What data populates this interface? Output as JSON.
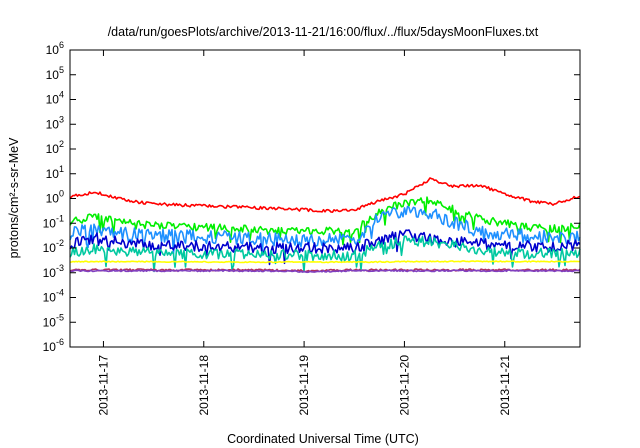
{
  "chart_data": {
    "type": "line",
    "title": "/data/run/goesPlots/archive/2013-11-21/16:00/flux/../flux/5daysMoonFluxes.txt",
    "xlabel": "Coordinated Universal Time (UTC)",
    "ylabel": "protons/cm²-s-sr-MeV",
    "yscale": "log",
    "ylim": [
      1e-06,
      1000000.0
    ],
    "xlim": [
      "2013-11-16T16:00",
      "2013-11-21T18:00"
    ],
    "y_ticks": [
      {
        "value": 1e-06,
        "base": "10",
        "exp": "-6"
      },
      {
        "value": 1e-05,
        "base": "10",
        "exp": "-5"
      },
      {
        "value": 0.0001,
        "base": "10",
        "exp": "-4"
      },
      {
        "value": 0.001,
        "base": "10",
        "exp": "-3"
      },
      {
        "value": 0.01,
        "base": "10",
        "exp": "-2"
      },
      {
        "value": 0.1,
        "base": "10",
        "exp": "-1"
      },
      {
        "value": 1.0,
        "base": "10",
        "exp": "0"
      },
      {
        "value": 10.0,
        "base": "10",
        "exp": "1"
      },
      {
        "value": 100.0,
        "base": "10",
        "exp": "2"
      },
      {
        "value": 1000.0,
        "base": "10",
        "exp": "3"
      },
      {
        "value": 10000.0,
        "base": "10",
        "exp": "4"
      },
      {
        "value": 100000.0,
        "base": "10",
        "exp": "5"
      },
      {
        "value": 1000000.0,
        "base": "10",
        "exp": "6"
      }
    ],
    "x_ticks": [
      "2013-11-17",
      "2013-11-18",
      "2013-11-19",
      "2013-11-20",
      "2013-11-21"
    ],
    "grid": false,
    "legend": "none",
    "series": [
      {
        "color": "#ff0000",
        "times": [
          "2013-11-16T16:00",
          "2013-11-16T22:00",
          "2013-11-17T06:00",
          "2013-11-17T12:00",
          "2013-11-18T00:00",
          "2013-11-18T08:00",
          "2013-11-18T16:00",
          "2013-11-19T00:00",
          "2013-11-19T08:00",
          "2013-11-19T12:00",
          "2013-11-19T18:00",
          "2013-11-20T00:00",
          "2013-11-20T06:00",
          "2013-11-20T12:00",
          "2013-11-20T18:00",
          "2013-11-21T00:00",
          "2013-11-21T06:00",
          "2013-11-21T12:00",
          "2013-11-21T18:00"
        ],
        "values": [
          1.2,
          1.8,
          0.8,
          0.6,
          0.5,
          0.45,
          0.4,
          0.35,
          0.3,
          0.35,
          0.8,
          1.5,
          6.0,
          3.0,
          3.5,
          1.5,
          0.8,
          0.6,
          1.3
        ]
      },
      {
        "color": "#00ee00",
        "times": [
          "2013-11-16T16:00",
          "2013-11-16T22:00",
          "2013-11-17T06:00",
          "2013-11-17T12:00",
          "2013-11-18T00:00",
          "2013-11-18T08:00",
          "2013-11-18T16:00",
          "2013-11-19T00:00",
          "2013-11-19T08:00",
          "2013-11-19T12:00",
          "2013-11-19T18:00",
          "2013-11-20T00:00",
          "2013-11-20T06:00",
          "2013-11-20T12:00",
          "2013-11-20T18:00",
          "2013-11-21T00:00",
          "2013-11-21T06:00",
          "2013-11-21T12:00",
          "2013-11-21T18:00"
        ],
        "values": [
          0.12,
          0.18,
          0.1,
          0.08,
          0.07,
          0.06,
          0.05,
          0.05,
          0.05,
          0.05,
          0.3,
          0.7,
          0.8,
          0.35,
          0.15,
          0.1,
          0.07,
          0.06,
          0.08
        ]
      },
      {
        "color": "#1e90ff",
        "times": [
          "2013-11-16T16:00",
          "2013-11-16T22:00",
          "2013-11-17T06:00",
          "2013-11-17T12:00",
          "2013-11-18T00:00",
          "2013-11-18T08:00",
          "2013-11-18T16:00",
          "2013-11-19T00:00",
          "2013-11-19T08:00",
          "2013-11-19T12:00",
          "2013-11-19T18:00",
          "2013-11-20T00:00",
          "2013-11-20T06:00",
          "2013-11-20T12:00",
          "2013-11-20T18:00",
          "2013-11-21T00:00",
          "2013-11-21T06:00",
          "2013-11-21T12:00",
          "2013-11-21T18:00"
        ],
        "values": [
          0.04,
          0.06,
          0.035,
          0.03,
          0.028,
          0.025,
          0.022,
          0.02,
          0.02,
          0.02,
          0.2,
          0.3,
          0.25,
          0.1,
          0.05,
          0.035,
          0.03,
          0.025,
          0.03
        ]
      },
      {
        "color": "#0000cd",
        "times": [
          "2013-11-16T16:00",
          "2013-11-16T22:00",
          "2013-11-17T06:00",
          "2013-11-17T12:00",
          "2013-11-18T00:00",
          "2013-11-18T08:00",
          "2013-11-18T16:00",
          "2013-11-19T00:00",
          "2013-11-19T08:00",
          "2013-11-19T12:00",
          "2013-11-19T18:00",
          "2013-11-20T00:00",
          "2013-11-20T06:00",
          "2013-11-20T12:00",
          "2013-11-20T18:00",
          "2013-11-21T00:00",
          "2013-11-21T06:00",
          "2013-11-21T12:00",
          "2013-11-21T18:00"
        ],
        "values": [
          0.015,
          0.025,
          0.015,
          0.012,
          0.012,
          0.011,
          0.01,
          0.01,
          0.01,
          0.01,
          0.02,
          0.035,
          0.025,
          0.018,
          0.015,
          0.012,
          0.012,
          0.011,
          0.014
        ]
      },
      {
        "color": "#00c8a0",
        "times": [
          "2013-11-16T16:00",
          "2013-11-16T22:00",
          "2013-11-17T06:00",
          "2013-11-17T12:00",
          "2013-11-18T00:00",
          "2013-11-18T08:00",
          "2013-11-18T16:00",
          "2013-11-19T00:00",
          "2013-11-19T08:00",
          "2013-11-19T12:00",
          "2013-11-19T18:00",
          "2013-11-20T00:00",
          "2013-11-20T06:00",
          "2013-11-20T12:00",
          "2013-11-20T18:00",
          "2013-11-21T00:00",
          "2013-11-21T06:00",
          "2013-11-21T12:00",
          "2013-11-21T18:00"
        ],
        "values": [
          0.007,
          0.009,
          0.007,
          0.006,
          0.006,
          0.006,
          0.0055,
          0.005,
          0.005,
          0.005,
          0.012,
          0.02,
          0.018,
          0.012,
          0.009,
          0.007,
          0.006,
          0.006,
          0.007
        ]
      },
      {
        "color": "#ffff00",
        "times": [
          "2013-11-16T16:00",
          "2013-11-17T12:00",
          "2013-11-18T12:00",
          "2013-11-19T12:00",
          "2013-11-20T12:00",
          "2013-11-21T18:00"
        ],
        "values": [
          0.0028,
          0.0028,
          0.0027,
          0.0027,
          0.0029,
          0.0028
        ]
      },
      {
        "color": "#b03060",
        "times": [
          "2013-11-16T16:00",
          "2013-11-17T12:00",
          "2013-11-18T12:00",
          "2013-11-19T00:00",
          "2013-11-19T12:00",
          "2013-11-20T12:00",
          "2013-11-21T18:00"
        ],
        "values": [
          0.0013,
          0.0013,
          0.0013,
          0.0012,
          0.0013,
          0.0013,
          0.0013
        ]
      },
      {
        "color": "#8040c0",
        "times": [
          "2013-11-16T16:00",
          "2013-11-17T12:00",
          "2013-11-18T12:00",
          "2013-11-19T00:00",
          "2013-11-19T12:00",
          "2013-11-20T12:00",
          "2013-11-21T18:00"
        ],
        "values": [
          0.0012,
          0.0012,
          0.0012,
          0.0011,
          0.0012,
          0.0012,
          0.0012
        ]
      }
    ]
  }
}
